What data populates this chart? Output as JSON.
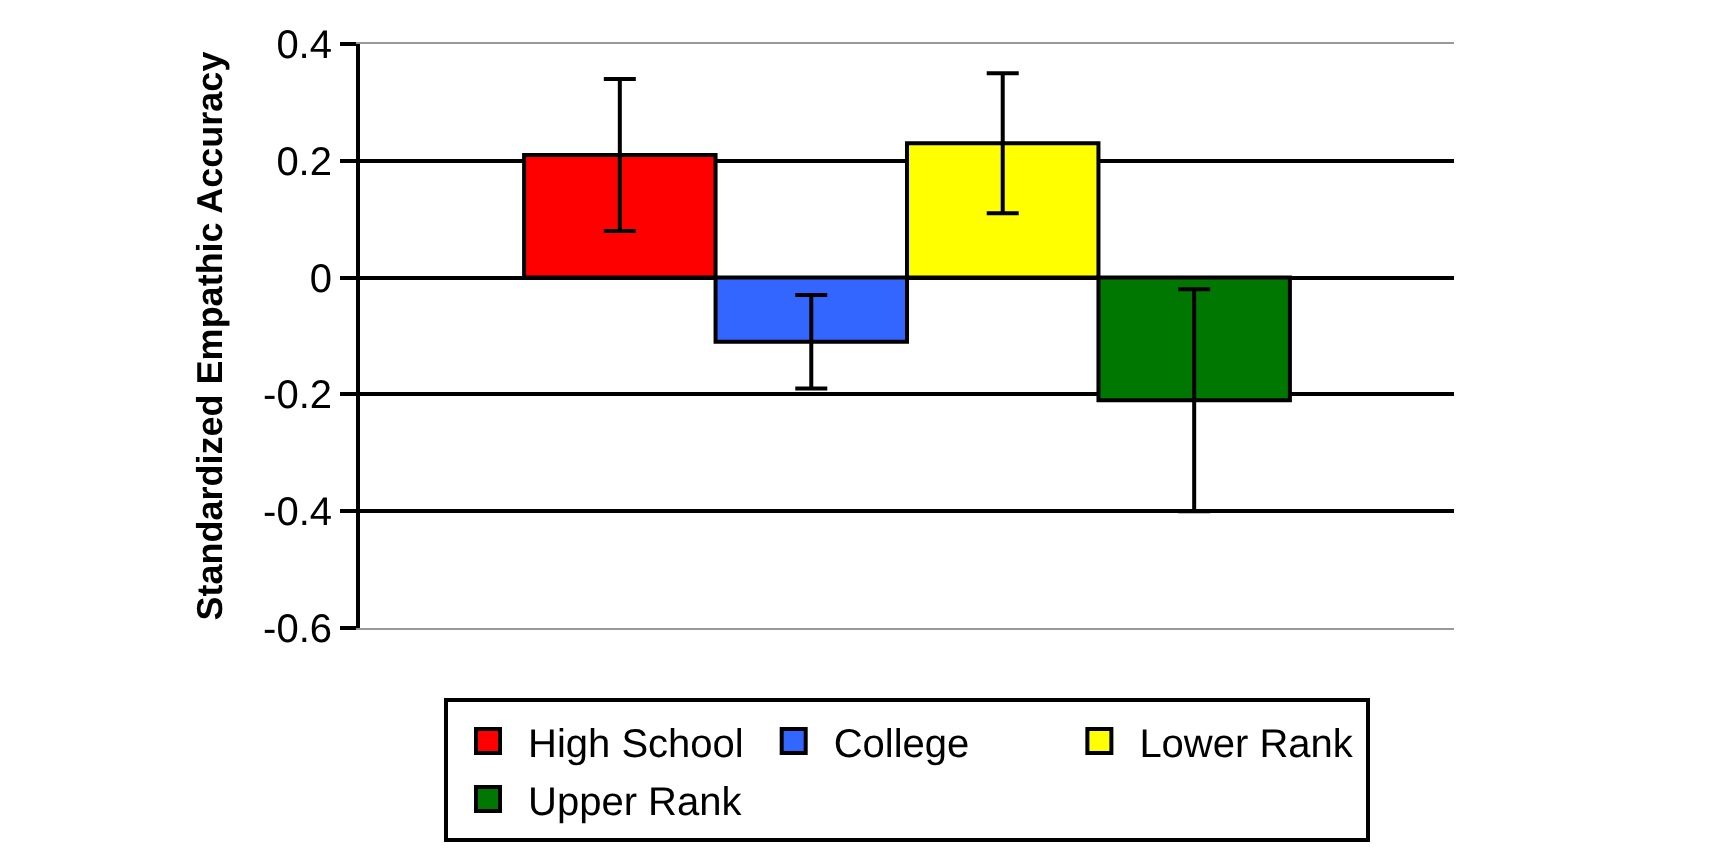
{
  "chart_data": {
    "type": "bar",
    "ylabel": "Standardized Empathic Accuracy",
    "categories": [
      null
    ],
    "series": [
      {
        "name": "High School",
        "color": "#ff0000",
        "values": [
          0.21
        ],
        "errors": [
          0.13
        ]
      },
      {
        "name": "College",
        "color": "#3366ff",
        "values": [
          -0.11
        ],
        "errors": [
          0.08
        ]
      },
      {
        "name": "Lower Rank",
        "color": "#ffff00",
        "values": [
          0.23
        ],
        "errors": [
          0.12
        ]
      },
      {
        "name": "Upper Rank",
        "color": "#007700",
        "values": [
          -0.21
        ],
        "errors": [
          0.19
        ]
      }
    ],
    "ylim": [
      -0.6,
      0.4
    ],
    "yticks": [
      -0.6,
      -0.4,
      -0.2,
      0,
      0.2,
      0.4
    ],
    "grid": "y",
    "legend": "bottom"
  }
}
